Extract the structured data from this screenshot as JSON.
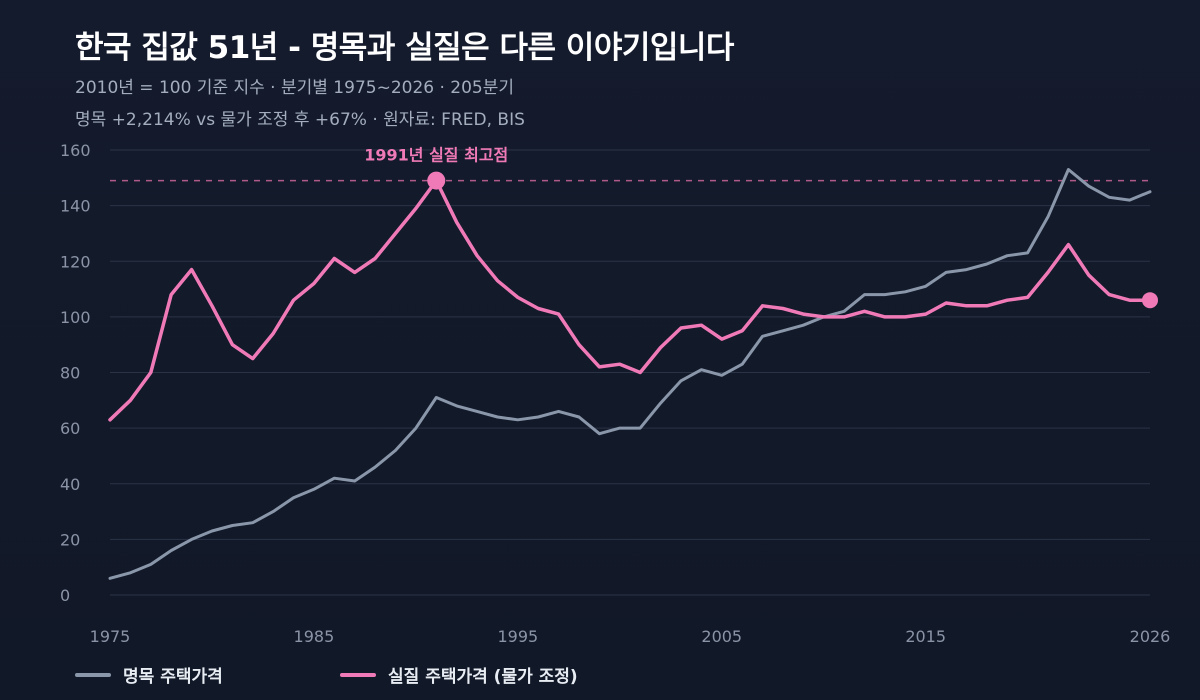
{
  "title": "한국 집값 51년 - 명목과 실질은 다른 이야기입니다",
  "subtitle_line1": "2010년 = 100 기준 지수  ·  분기별 1975~2026  ·  205분기",
  "subtitle_line2": "명목 +2,214%  vs  물가 조정 후 +67%  ·  원자료: FRED, BIS",
  "colors": {
    "background": "#131a2b",
    "grid": "#2a3346",
    "tick": "#8a94a6",
    "nominal": "#8a97aa",
    "real": "#f07ab8",
    "peak_line": "#b05a8a"
  },
  "chart_data": {
    "type": "line",
    "x_range": [
      1975,
      2026
    ],
    "ylim": [
      0,
      160
    ],
    "x_ticks": [
      1975,
      1985,
      1995,
      2005,
      2015,
      2026
    ],
    "y_ticks": [
      0,
      20,
      40,
      60,
      80,
      100,
      120,
      140,
      160
    ],
    "grid": "horizontal",
    "legend_position": "bottom-left",
    "series": [
      {
        "name": "명목 주택가격",
        "color": "#8a97aa",
        "points": [
          [
            1975,
            6
          ],
          [
            1976,
            8
          ],
          [
            1977,
            11
          ],
          [
            1978,
            16
          ],
          [
            1979,
            20
          ],
          [
            1980,
            23
          ],
          [
            1981,
            25
          ],
          [
            1982,
            26
          ],
          [
            1983,
            30
          ],
          [
            1984,
            35
          ],
          [
            1985,
            38
          ],
          [
            1986,
            42
          ],
          [
            1987,
            41
          ],
          [
            1988,
            46
          ],
          [
            1989,
            52
          ],
          [
            1990,
            60
          ],
          [
            1991,
            71
          ],
          [
            1992,
            68
          ],
          [
            1993,
            66
          ],
          [
            1994,
            64
          ],
          [
            1995,
            63
          ],
          [
            1996,
            64
          ],
          [
            1997,
            66
          ],
          [
            1998,
            64
          ],
          [
            1999,
            58
          ],
          [
            2000,
            60
          ],
          [
            2001,
            60
          ],
          [
            2002,
            69
          ],
          [
            2003,
            77
          ],
          [
            2004,
            81
          ],
          [
            2005,
            79
          ],
          [
            2006,
            83
          ],
          [
            2007,
            93
          ],
          [
            2008,
            95
          ],
          [
            2009,
            97
          ],
          [
            2010,
            100
          ],
          [
            2011,
            102
          ],
          [
            2012,
            108
          ],
          [
            2013,
            108
          ],
          [
            2014,
            109
          ],
          [
            2015,
            111
          ],
          [
            2016,
            116
          ],
          [
            2017,
            117
          ],
          [
            2018,
            119
          ],
          [
            2019,
            122
          ],
          [
            2020,
            123
          ],
          [
            2021,
            136
          ],
          [
            2022,
            153
          ],
          [
            2023,
            147
          ],
          [
            2024,
            143
          ],
          [
            2025,
            142
          ],
          [
            2026,
            145
          ]
        ]
      },
      {
        "name": "실질 주택가격 (물가 조정)",
        "color": "#f07ab8",
        "points": [
          [
            1975,
            63
          ],
          [
            1976,
            70
          ],
          [
            1977,
            80
          ],
          [
            1978,
            108
          ],
          [
            1979,
            117
          ],
          [
            1980,
            104
          ],
          [
            1981,
            90
          ],
          [
            1982,
            85
          ],
          [
            1983,
            94
          ],
          [
            1984,
            106
          ],
          [
            1985,
            112
          ],
          [
            1986,
            121
          ],
          [
            1987,
            116
          ],
          [
            1988,
            121
          ],
          [
            1989,
            130
          ],
          [
            1990,
            139
          ],
          [
            1991,
            149
          ],
          [
            1992,
            134
          ],
          [
            1993,
            122
          ],
          [
            1994,
            113
          ],
          [
            1995,
            107
          ],
          [
            1996,
            103
          ],
          [
            1997,
            101
          ],
          [
            1998,
            90
          ],
          [
            1999,
            82
          ],
          [
            2000,
            83
          ],
          [
            2001,
            80
          ],
          [
            2002,
            89
          ],
          [
            2003,
            96
          ],
          [
            2004,
            97
          ],
          [
            2005,
            92
          ],
          [
            2006,
            95
          ],
          [
            2007,
            104
          ],
          [
            2008,
            103
          ],
          [
            2009,
            101
          ],
          [
            2010,
            100
          ],
          [
            2011,
            100
          ],
          [
            2012,
            102
          ],
          [
            2013,
            100
          ],
          [
            2014,
            100
          ],
          [
            2015,
            101
          ],
          [
            2016,
            105
          ],
          [
            2017,
            104
          ],
          [
            2018,
            104
          ],
          [
            2019,
            106
          ],
          [
            2020,
            107
          ],
          [
            2021,
            116
          ],
          [
            2022,
            126
          ],
          [
            2023,
            115
          ],
          [
            2024,
            108
          ],
          [
            2025,
            106
          ],
          [
            2026,
            106
          ]
        ]
      }
    ],
    "annotations": [
      {
        "text": "1991년 실질 최고점",
        "x": 1991,
        "y": 149
      }
    ],
    "reference_line": {
      "y": 149,
      "style": "dashed"
    },
    "end_marker": {
      "x": 2026,
      "y": 106
    }
  }
}
